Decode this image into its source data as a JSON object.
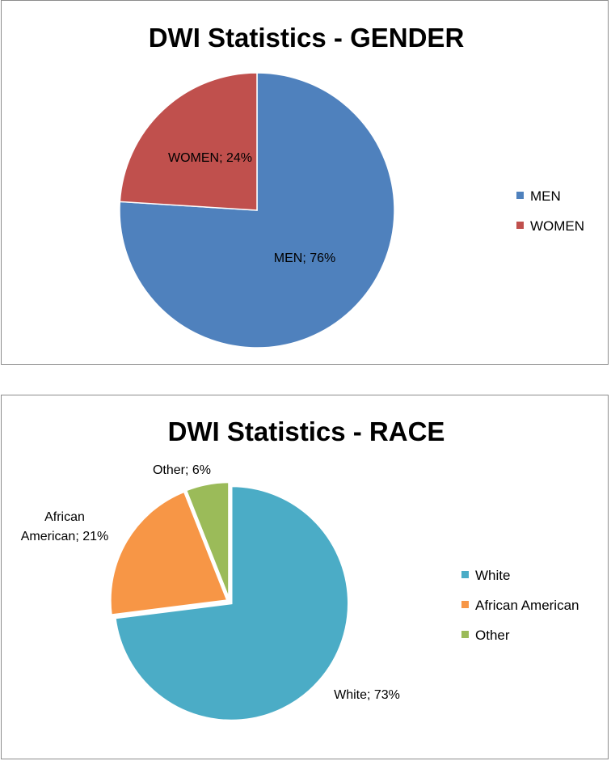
{
  "chart_data": [
    {
      "type": "pie",
      "title": "DWI Statistics - GENDER",
      "categories": [
        "MEN",
        "WOMEN"
      ],
      "values": [
        76,
        24
      ],
      "colors": [
        "#4f81bd",
        "#c0504d"
      ],
      "data_labels": [
        "MEN; 76%",
        "WOMEN; 24%"
      ],
      "legend": [
        "MEN",
        "WOMEN"
      ],
      "legend_position": "right"
    },
    {
      "type": "pie",
      "title": "DWI Statistics - RACE",
      "categories": [
        "White",
        "African American",
        "Other"
      ],
      "values": [
        73,
        21,
        6
      ],
      "colors": [
        "#4bacc6",
        "#f79646",
        "#9bbb59"
      ],
      "data_labels": [
        [
          "White; 73%"
        ],
        [
          "African",
          "American; 21%"
        ],
        [
          "Other; 6%"
        ]
      ],
      "legend": [
        "White",
        "African American",
        "Other"
      ],
      "legend_position": "right"
    }
  ]
}
